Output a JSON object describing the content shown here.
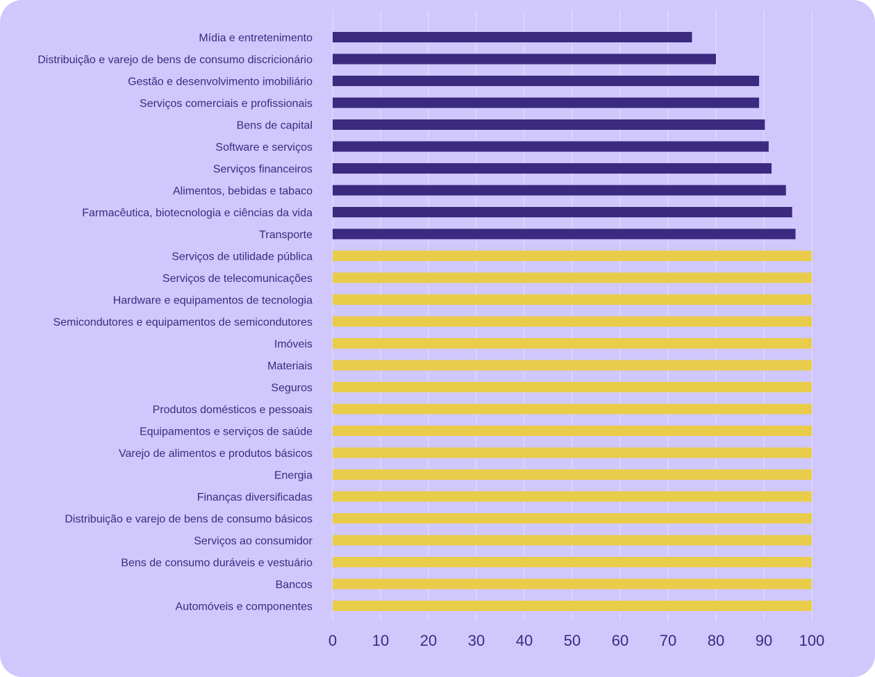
{
  "chart_data": {
    "type": "bar",
    "orientation": "horizontal",
    "categories": [
      "Mídia e entretenimento",
      "Distribuição e varejo de bens de consumo discricionário",
      "Gestão e desenvolvimento imobiliário",
      "Serviços comerciais e profissionais",
      "Bens de capital",
      "Software e serviços",
      "Serviços financeiros",
      "Alimentos, bebidas e tabaco",
      "Farmacêutica, biotecnologia e ciências da vida",
      "Transporte",
      "Serviços de utilidade pública",
      "Serviços de telecomunicações",
      "Hardware e equipamentos de tecnologia",
      "Semicondutores e equipamentos de semicondutores",
      "Imóveis",
      "Materiais",
      "Seguros",
      "Produtos domésticos e pessoais",
      "Equipamentos e serviços de saúde",
      "Varejo de alimentos e produtos básicos",
      "Energia",
      "Finanças diversificadas",
      "Distribuição e varejo de bens de consumo básicos",
      "Serviços ao consumidor",
      "Bens de consumo duráveis e vestuário",
      "Bancos",
      "Automóveis e componentes"
    ],
    "values": [
      75,
      80,
      89,
      89,
      90.2,
      91,
      91.6,
      94.6,
      95.9,
      96.6,
      100,
      100,
      100,
      100,
      100,
      100,
      100,
      100,
      100,
      100,
      100,
      100,
      100,
      100,
      100,
      100,
      100
    ],
    "title": "",
    "xlabel": "",
    "ylabel": "",
    "xlim": [
      0,
      100
    ],
    "xticks": [
      "0",
      "10",
      "20",
      "30",
      "40",
      "50",
      "60",
      "70",
      "80",
      "90",
      "100"
    ],
    "grid": "vertical",
    "colors": {
      "below_100": "#3b2a80",
      "at_100": "#e9cd4a",
      "background": "#d0c8fc",
      "text": "#3b2a80",
      "grid": "#e2dcfd"
    }
  }
}
